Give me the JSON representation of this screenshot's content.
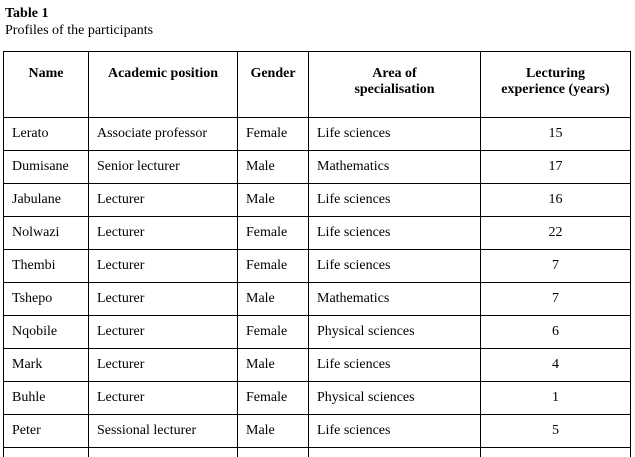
{
  "table_label": "Table 1",
  "table_caption": "Profiles of the participants",
  "chart_data": {
    "type": "table",
    "columns": [
      "Name",
      "Academic position",
      "Gender",
      "Area of specialisation",
      "Lecturing experience (years)"
    ],
    "rows": [
      [
        "Lerato",
        "Associate professor",
        "Female",
        "Life sciences",
        "15"
      ],
      [
        "Dumisane",
        "Senior lecturer",
        "Male",
        "Mathematics",
        "17"
      ],
      [
        "Jabulane",
        "Lecturer",
        "Male",
        "Life sciences",
        "16"
      ],
      [
        "Nolwazi",
        "Lecturer",
        "Female",
        "Life sciences",
        "22"
      ],
      [
        "Thembi",
        "Lecturer",
        "Female",
        "Life sciences",
        "7"
      ],
      [
        "Tshepo",
        "Lecturer",
        "Male",
        "Mathematics",
        "7"
      ],
      [
        "Nqobile",
        "Lecturer",
        "Female",
        "Physical sciences",
        "6"
      ],
      [
        "Mark",
        "Lecturer",
        "Male",
        "Life sciences",
        "4"
      ],
      [
        "Buhle",
        "Lecturer",
        "Female",
        "Physical sciences",
        "1"
      ],
      [
        "Peter",
        "Sessional lecturer",
        "Male",
        "Life sciences",
        "5"
      ]
    ]
  },
  "colors": {
    "text": "#000000",
    "border": "#000000",
    "background": "#ffffff"
  }
}
